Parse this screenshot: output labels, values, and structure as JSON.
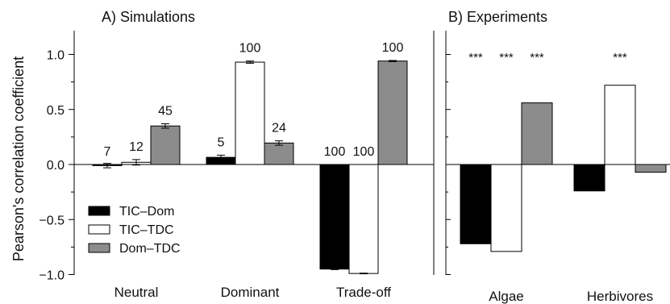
{
  "y_axis_label": "Pearson's correlation coefficient",
  "colors": {
    "TIC-Dom": "#000000",
    "TIC-TDC": "#ffffff",
    "Dom-TDC": "#8c8c8c",
    "axis": "#000000"
  },
  "legend": [
    "TIC–Dom",
    "TIC–TDC",
    "Dom–TDC"
  ],
  "chart_data": [
    {
      "type": "bar",
      "title": "A) Simulations",
      "xlabel": "",
      "ylabel": "Pearson's correlation coefficient",
      "ylim": [
        -1.0,
        1.25
      ],
      "yticks": [
        -1.0,
        -0.5,
        0.0,
        0.5,
        1.0
      ],
      "ytick_labels": [
        "−1.0",
        "−0.5",
        "0.0",
        "0.5",
        "1.0"
      ],
      "legend_position": "lower-left",
      "categories": [
        "Neutral",
        "Dominant",
        "Trade-off"
      ],
      "series": [
        {
          "name": "TIC–Dom",
          "key": "TIC-Dom",
          "values": [
            -0.01,
            0.065,
            -0.95
          ],
          "errors": [
            0.02,
            0.02,
            0.005
          ],
          "labels": [
            "7",
            "5",
            "100"
          ]
        },
        {
          "name": "TIC–TDC",
          "key": "TIC-TDC",
          "values": [
            0.02,
            0.93,
            -0.99
          ],
          "errors": [
            0.025,
            0.01,
            0.003
          ],
          "labels": [
            "12",
            "100",
            "100"
          ]
        },
        {
          "name": "Dom–TDC",
          "key": "Dom-TDC",
          "values": [
            0.35,
            0.195,
            0.94
          ],
          "errors": [
            0.02,
            0.02,
            0.005
          ],
          "labels": [
            "45",
            "24",
            "100"
          ]
        }
      ]
    },
    {
      "type": "bar",
      "title": "B) Experiments",
      "xlabel": "",
      "ylabel": "",
      "ylim": [
        -1.0,
        1.25
      ],
      "categories": [
        "Algae",
        "Herbivores"
      ],
      "series": [
        {
          "name": "TIC–Dom",
          "key": "TIC-Dom",
          "values": [
            -0.72,
            -0.24
          ],
          "annotations": [
            "***",
            ""
          ]
        },
        {
          "name": "TIC–TDC",
          "key": "TIC-TDC",
          "values": [
            -0.79,
            0.72
          ],
          "annotations": [
            "***",
            "***"
          ]
        },
        {
          "name": "Dom–TDC",
          "key": "Dom-TDC",
          "values": [
            0.56,
            -0.07
          ],
          "annotations": [
            "***",
            ""
          ]
        }
      ]
    }
  ]
}
